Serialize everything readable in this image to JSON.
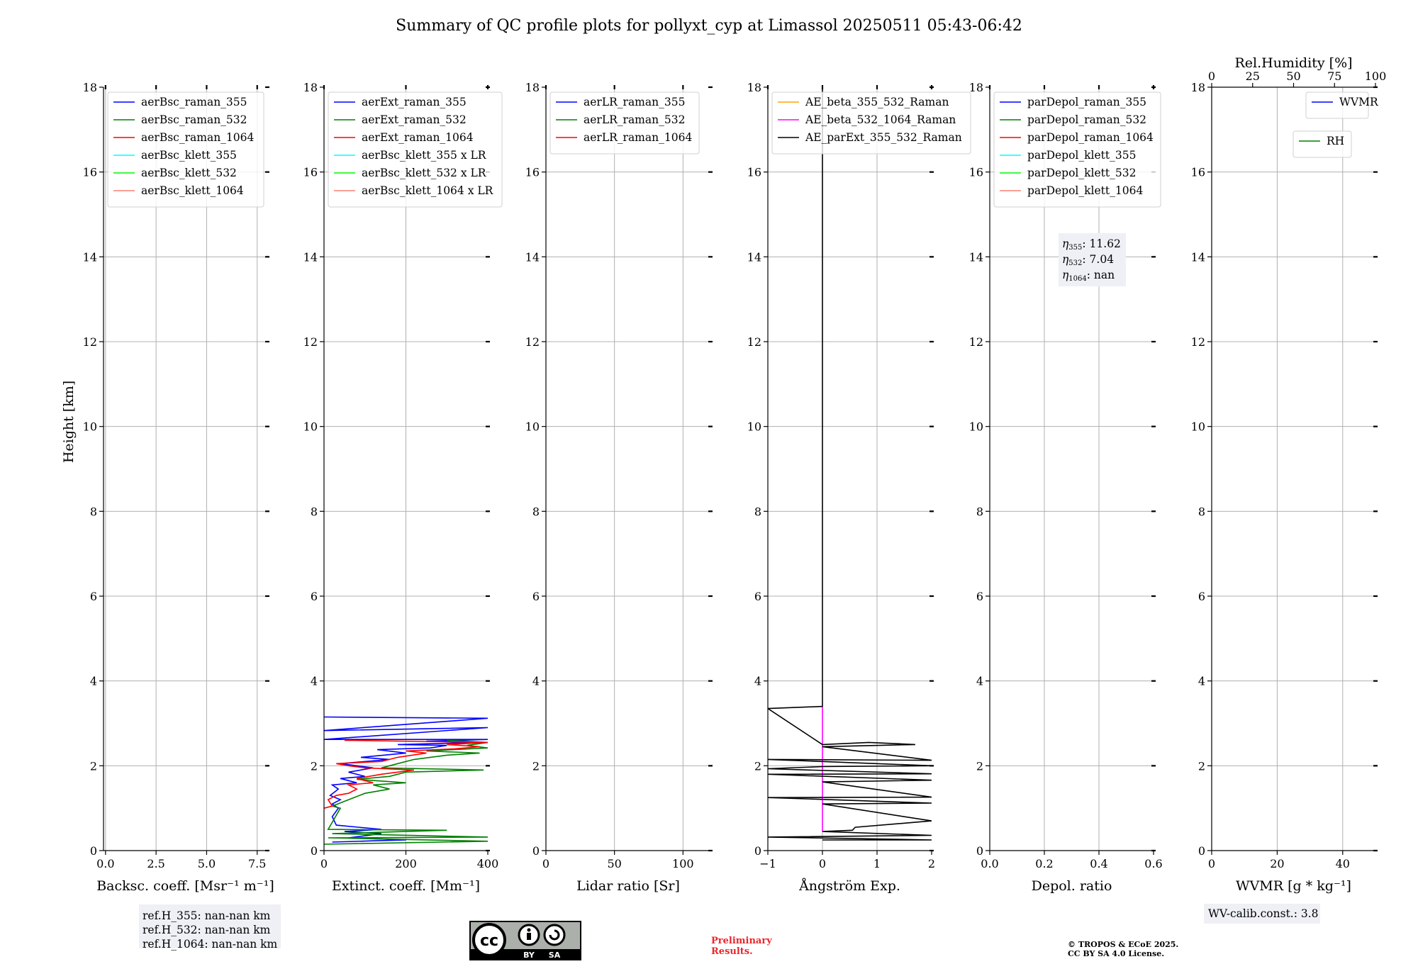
{
  "title": "Summary of QC profile plots for pollyxt_cyp at Limassol 20250511 05:43-06:42",
  "colors": {
    "blue": "#0000ff",
    "green": "#008000",
    "red": "#ff0000",
    "cyan": "#00ffff",
    "lime": "#00ff00",
    "salmon": "#fa8072",
    "orange": "#ffa500",
    "magenta": "#ff00ff",
    "black": "#000000",
    "grid": "#b0b0b0",
    "boxbg": "#eef0f5"
  },
  "y_axis": {
    "label": "Height [km]",
    "ylim": [
      0,
      18
    ],
    "ticks": [
      "0",
      "2",
      "4",
      "6",
      "8",
      "10",
      "12",
      "14",
      "16",
      "18"
    ]
  },
  "chart_data": [
    {
      "type": "line",
      "xlabel": "Backsc. coeff. [Msr⁻¹ m⁻¹]",
      "xlim": [
        -0.1,
        8.0
      ],
      "xticks": [
        {
          "v": 0,
          "t": "0.0"
        },
        {
          "v": 2.5,
          "t": "2.5"
        },
        {
          "v": 5.0,
          "t": "5.0"
        },
        {
          "v": 7.5,
          "t": "7.5"
        }
      ],
      "legend": [
        {
          "name": "aerBsc_raman_355",
          "color": "#0000ff"
        },
        {
          "name": "aerBsc_raman_532",
          "color": "#008000"
        },
        {
          "name": "aerBsc_raman_1064",
          "color": "#ff0000"
        },
        {
          "name": "aerBsc_klett_355",
          "color": "#00ffff"
        },
        {
          "name": "aerBsc_klett_532",
          "color": "#00ff00"
        },
        {
          "name": "aerBsc_klett_1064",
          "color": "#fa8072"
        }
      ],
      "series": []
    },
    {
      "type": "line",
      "xlabel": "Extinct. coeff. [Mm⁻¹]",
      "xlim": [
        0,
        400
      ],
      "xticks": [
        {
          "v": 0,
          "t": "0"
        },
        {
          "v": 200,
          "t": "200"
        },
        {
          "v": 400,
          "t": "400"
        }
      ],
      "legend": [
        {
          "name": "aerExt_raman_355",
          "color": "#0000ff"
        },
        {
          "name": "aerExt_raman_532",
          "color": "#008000"
        },
        {
          "name": "aerExt_raman_1064",
          "color": "#ff0000"
        },
        {
          "name": "aerBsc_klett_355 x LR",
          "color": "#00ffff"
        },
        {
          "name": "aerBsc_klett_532 x LR",
          "color": "#00ff00"
        },
        {
          "name": "aerBsc_klett_1064 x LR",
          "color": "#fa8072"
        }
      ],
      "series": [
        {
          "name": "aerExt_raman_355",
          "color": "#0000ff",
          "points": [
            [
              20,
              0.2
            ],
            [
              120,
              0.23
            ],
            [
              200,
              0.25
            ],
            [
              60,
              0.3
            ],
            [
              140,
              0.4
            ],
            [
              50,
              0.45
            ],
            [
              140,
              0.5
            ],
            [
              30,
              0.6
            ],
            [
              20,
              0.8
            ],
            [
              35,
              1.0
            ],
            [
              20,
              1.1
            ],
            [
              40,
              1.2
            ],
            [
              15,
              1.3
            ],
            [
              35,
              1.45
            ],
            [
              20,
              1.55
            ],
            [
              80,
              1.6
            ],
            [
              40,
              1.7
            ],
            [
              100,
              1.75
            ],
            [
              60,
              1.85
            ],
            [
              120,
              1.95
            ],
            [
              40,
              2.05
            ],
            [
              160,
              2.15
            ],
            [
              90,
              2.2
            ],
            [
              200,
              2.3
            ],
            [
              130,
              2.38
            ],
            [
              260,
              2.42
            ],
            [
              300,
              2.48
            ],
            [
              180,
              2.5
            ],
            [
              380,
              2.55
            ],
            [
              250,
              2.58
            ],
            [
              400,
              2.62
            ],
            [
              0,
              2.62
            ],
            [
              400,
              2.9
            ],
            [
              0,
              2.83
            ],
            [
              400,
              3.12
            ],
            [
              0,
              3.15
            ]
          ]
        },
        {
          "name": "aerExt_raman_532",
          "color": "#008000",
          "points": [
            [
              0,
              0.15
            ],
            [
              400,
              0.22
            ],
            [
              10,
              0.3
            ],
            [
              400,
              0.32
            ],
            [
              20,
              0.4
            ],
            [
              300,
              0.48
            ],
            [
              10,
              0.5
            ],
            [
              40,
              1.0
            ],
            [
              20,
              1.05
            ],
            [
              60,
              1.2
            ],
            [
              100,
              1.35
            ],
            [
              160,
              1.45
            ],
            [
              120,
              1.55
            ],
            [
              200,
              1.6
            ],
            [
              80,
              1.68
            ],
            [
              160,
              1.75
            ],
            [
              200,
              1.85
            ],
            [
              390,
              1.9
            ],
            [
              140,
              1.95
            ],
            [
              180,
              2.05
            ],
            [
              220,
              2.15
            ],
            [
              300,
              2.25
            ],
            [
              380,
              2.3
            ],
            [
              250,
              2.35
            ],
            [
              400,
              2.42
            ],
            [
              350,
              2.48
            ],
            [
              400,
              2.55
            ],
            [
              300,
              2.6
            ]
          ]
        },
        {
          "name": "aerExt_raman_1064",
          "color": "#ff0000",
          "points": [
            [
              0,
              1.0
            ],
            [
              20,
              1.05
            ],
            [
              10,
              1.2
            ],
            [
              30,
              1.3
            ],
            [
              60,
              1.35
            ],
            [
              80,
              1.45
            ],
            [
              60,
              1.55
            ],
            [
              120,
              1.6
            ],
            [
              80,
              1.7
            ],
            [
              140,
              1.8
            ],
            [
              220,
              1.9
            ],
            [
              100,
              1.95
            ],
            [
              60,
              2.0
            ],
            [
              30,
              2.05
            ],
            [
              140,
              2.1
            ],
            [
              180,
              2.2
            ],
            [
              250,
              2.3
            ],
            [
              200,
              2.35
            ],
            [
              320,
              2.4
            ],
            [
              380,
              2.45
            ],
            [
              300,
              2.5
            ],
            [
              400,
              2.55
            ],
            [
              50,
              2.6
            ]
          ]
        }
      ]
    },
    {
      "type": "line",
      "xlabel": "Lidar ratio [Sr]",
      "xlim": [
        0,
        120
      ],
      "xticks": [
        {
          "v": 0,
          "t": "0"
        },
        {
          "v": 50,
          "t": "50"
        },
        {
          "v": 100,
          "t": "100"
        }
      ],
      "legend": [
        {
          "name": "aerLR_raman_355",
          "color": "#0000ff"
        },
        {
          "name": "aerLR_raman_532",
          "color": "#008000"
        },
        {
          "name": "aerLR_raman_1064",
          "color": "#ff0000"
        }
      ],
      "series": []
    },
    {
      "type": "line",
      "xlabel": "Ångström Exp.",
      "xlim": [
        -1,
        2
      ],
      "xticks": [
        {
          "v": -1,
          "t": "−1"
        },
        {
          "v": 0,
          "t": "0"
        },
        {
          "v": 1,
          "t": "1"
        },
        {
          "v": 2,
          "t": "2"
        }
      ],
      "legend": [
        {
          "name": "AE_beta_355_532_Raman",
          "color": "#ffa500"
        },
        {
          "name": "AE_beta_532_1064_Raman",
          "color": "#ff00ff"
        },
        {
          "name": "AE_parExt_355_532_Raman",
          "color": "#000000"
        }
      ],
      "series": [
        {
          "name": "AE_beta_532_1064_Raman",
          "color": "#ff00ff",
          "points": [
            [
              0,
              0.45
            ],
            [
              0,
              3.4
            ]
          ]
        },
        {
          "name": "AE_parExt_355_532_Raman",
          "color": "#000000",
          "points": [
            [
              0,
              0.25
            ],
            [
              2,
              0.25
            ],
            [
              -1,
              0.32
            ],
            [
              2,
              0.36
            ],
            [
              0,
              0.45
            ],
            [
              0.55,
              0.48
            ],
            [
              0.6,
              0.55
            ],
            [
              2,
              0.7
            ],
            [
              0,
              1.1
            ],
            [
              2,
              1.12
            ],
            [
              -1,
              1.25
            ],
            [
              2,
              1.26
            ],
            [
              0,
              1.62
            ],
            [
              2,
              1.66
            ],
            [
              -1,
              1.8
            ],
            [
              2,
              1.81
            ],
            [
              -1,
              1.93
            ],
            [
              0,
              1.98
            ],
            [
              2,
              2.0
            ],
            [
              -1,
              2.15
            ],
            [
              2,
              2.13
            ],
            [
              0,
              2.45
            ],
            [
              1.7,
              2.5
            ],
            [
              0.85,
              2.55
            ],
            [
              0,
              2.5
            ],
            [
              -1,
              3.35
            ],
            [
              0,
              3.4
            ],
            [
              0,
              18
            ]
          ]
        }
      ]
    },
    {
      "type": "line",
      "xlabel": "Depol. ratio",
      "xlim": [
        0,
        0.6
      ],
      "xticks": [
        {
          "v": 0,
          "t": "0.0"
        },
        {
          "v": 0.2,
          "t": "0.2"
        },
        {
          "v": 0.4,
          "t": "0.4"
        },
        {
          "v": 0.6,
          "t": "0.6"
        }
      ],
      "legend": [
        {
          "name": "parDepol_raman_355",
          "color": "#0000ff"
        },
        {
          "name": "parDepol_raman_532",
          "color": "#008000"
        },
        {
          "name": "parDepol_raman_1064",
          "color": "#ff0000"
        },
        {
          "name": "parDepol_klett_355",
          "color": "#00ffff"
        },
        {
          "name": "parDepol_klett_532",
          "color": "#00ff00"
        },
        {
          "name": "parDepol_klett_1064",
          "color": "#fa8072"
        }
      ],
      "series": []
    },
    {
      "type": "line",
      "xlabel": "WVMR [g * kg⁻¹]",
      "xlim": [
        0,
        50
      ],
      "xticks": [
        {
          "v": 0,
          "t": "0"
        },
        {
          "v": 20,
          "t": "20"
        },
        {
          "v": 40,
          "t": "40"
        }
      ],
      "top_xlabel": "Rel.Humidity [%]",
      "top_xlim": [
        0,
        100
      ],
      "top_xticks": [
        {
          "v": 0,
          "t": "0"
        },
        {
          "v": 25,
          "t": "25"
        },
        {
          "v": 50,
          "t": "50"
        },
        {
          "v": 75,
          "t": "75"
        },
        {
          "v": 100,
          "t": "100"
        }
      ],
      "legend": [
        {
          "name": "WVMR",
          "color": "#0000ff"
        }
      ],
      "legend2": [
        {
          "name": "RH",
          "color": "#008000"
        }
      ],
      "series": []
    }
  ],
  "boxes": {
    "ref": [
      "ref.H_355: nan-nan km",
      "ref.H_532: nan-nan km",
      "ref.H_1064: nan-nan km"
    ],
    "eta": {
      "l1": "11.62",
      "l2": "7.04",
      "l3": "nan"
    },
    "wv": "WV-calib.const.: 3.8"
  },
  "footer": {
    "prelim1": "Preliminary",
    "prelim2": "Results.",
    "copy1": "© TROPOS & ECoE 2025.",
    "copy2": "CC BY SA 4.0 License.",
    "cc": "cc",
    "by": "BY",
    "sa": "SA"
  }
}
